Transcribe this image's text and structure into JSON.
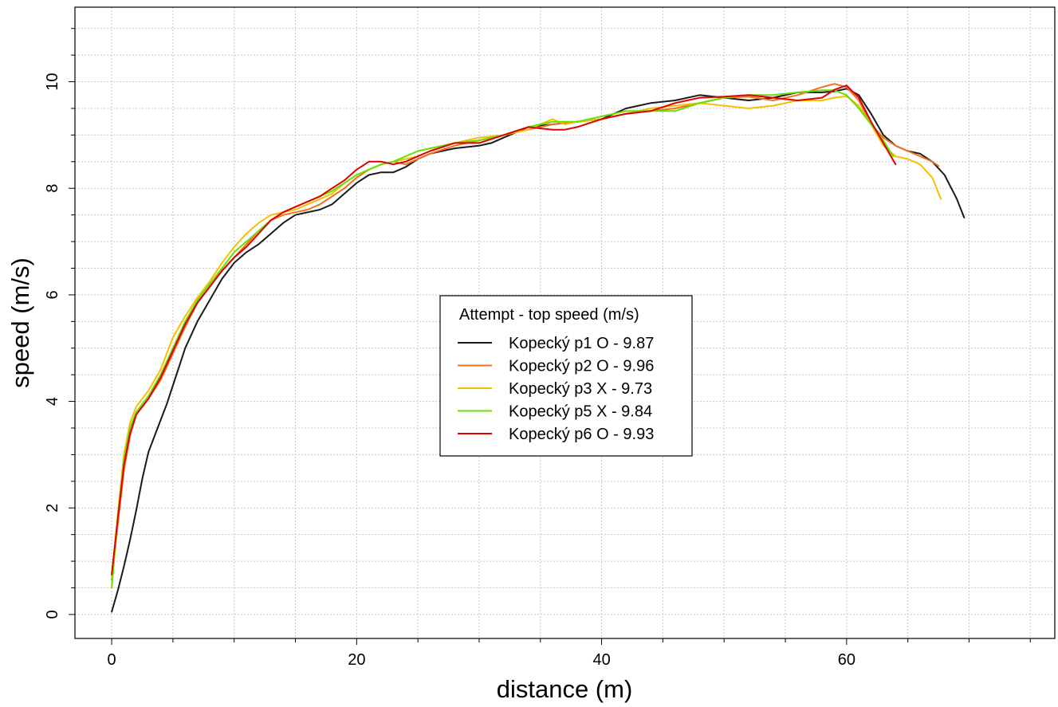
{
  "chart_data": {
    "type": "line",
    "xlabel": "distance (m)",
    "ylabel": "speed (m/s)",
    "xlim": [
      -3,
      77
    ],
    "ylim": [
      -0.45,
      11.4
    ],
    "xticks": [
      0,
      20,
      40,
      60
    ],
    "yticks": [
      0,
      2,
      4,
      6,
      8,
      10
    ],
    "grid": true,
    "legend": {
      "title": "Attempt - top speed (m/s)",
      "placement": "center"
    },
    "series": [
      {
        "name": "Kopecký p1 O - 9.87",
        "color": "#1a1a1a",
        "points": [
          [
            0,
            0.05
          ],
          [
            0.5,
            0.45
          ],
          [
            1,
            0.9
          ],
          [
            1.5,
            1.4
          ],
          [
            2,
            1.95
          ],
          [
            2.5,
            2.55
          ],
          [
            3,
            3.05
          ],
          [
            4,
            3.65
          ],
          [
            4.5,
            3.95
          ],
          [
            5,
            4.3
          ],
          [
            6,
            5.0
          ],
          [
            7,
            5.5
          ],
          [
            8,
            5.9
          ],
          [
            9,
            6.3
          ],
          [
            10,
            6.6
          ],
          [
            11,
            6.8
          ],
          [
            12,
            6.95
          ],
          [
            13,
            7.15
          ],
          [
            14,
            7.35
          ],
          [
            15,
            7.5
          ],
          [
            16,
            7.55
          ],
          [
            17,
            7.6
          ],
          [
            18,
            7.7
          ],
          [
            19,
            7.9
          ],
          [
            20,
            8.1
          ],
          [
            21,
            8.25
          ],
          [
            22,
            8.3
          ],
          [
            23,
            8.3
          ],
          [
            24,
            8.4
          ],
          [
            25,
            8.55
          ],
          [
            26,
            8.65
          ],
          [
            28,
            8.75
          ],
          [
            30,
            8.8
          ],
          [
            31,
            8.85
          ],
          [
            32,
            8.95
          ],
          [
            34,
            9.15
          ],
          [
            36,
            9.2
          ],
          [
            38,
            9.25
          ],
          [
            40,
            9.3
          ],
          [
            42,
            9.5
          ],
          [
            44,
            9.6
          ],
          [
            46,
            9.65
          ],
          [
            48,
            9.75
          ],
          [
            50,
            9.7
          ],
          [
            52,
            9.65
          ],
          [
            54,
            9.7
          ],
          [
            56,
            9.8
          ],
          [
            58,
            9.8
          ],
          [
            59,
            9.82
          ],
          [
            60,
            9.87
          ],
          [
            61,
            9.75
          ],
          [
            62,
            9.4
          ],
          [
            63,
            9.0
          ],
          [
            64,
            8.8
          ],
          [
            65,
            8.7
          ],
          [
            66,
            8.65
          ],
          [
            67,
            8.5
          ],
          [
            68,
            8.25
          ],
          [
            69,
            7.8
          ],
          [
            69.6,
            7.45
          ]
        ]
      },
      {
        "name": "Kopecký p2 O - 9.96",
        "color": "#f07020",
        "points": [
          [
            0,
            0.65
          ],
          [
            0.5,
            1.7
          ],
          [
            1,
            2.7
          ],
          [
            1.5,
            3.35
          ],
          [
            2,
            3.75
          ],
          [
            2.5,
            3.9
          ],
          [
            3,
            4.05
          ],
          [
            4,
            4.4
          ],
          [
            5,
            4.9
          ],
          [
            6,
            5.4
          ],
          [
            7,
            5.85
          ],
          [
            8,
            6.15
          ],
          [
            9,
            6.45
          ],
          [
            10,
            6.7
          ],
          [
            11,
            6.95
          ],
          [
            12,
            7.2
          ],
          [
            13,
            7.4
          ],
          [
            14,
            7.5
          ],
          [
            15,
            7.55
          ],
          [
            16,
            7.6
          ],
          [
            17,
            7.7
          ],
          [
            18,
            7.85
          ],
          [
            19,
            8.0
          ],
          [
            20,
            8.2
          ],
          [
            21,
            8.35
          ],
          [
            22,
            8.45
          ],
          [
            23,
            8.5
          ],
          [
            24,
            8.45
          ],
          [
            25,
            8.55
          ],
          [
            26,
            8.65
          ],
          [
            28,
            8.8
          ],
          [
            30,
            8.9
          ],
          [
            32,
            9.0
          ],
          [
            34,
            9.1
          ],
          [
            36,
            9.2
          ],
          [
            38,
            9.25
          ],
          [
            40,
            9.3
          ],
          [
            42,
            9.4
          ],
          [
            44,
            9.45
          ],
          [
            46,
            9.5
          ],
          [
            48,
            9.6
          ],
          [
            50,
            9.7
          ],
          [
            52,
            9.72
          ],
          [
            54,
            9.65
          ],
          [
            56,
            9.75
          ],
          [
            58,
            9.9
          ],
          [
            59,
            9.96
          ],
          [
            60,
            9.9
          ],
          [
            61,
            9.65
          ],
          [
            62,
            9.2
          ],
          [
            63,
            8.95
          ],
          [
            64,
            8.8
          ],
          [
            65,
            8.7
          ],
          [
            66,
            8.6
          ],
          [
            67,
            8.5
          ],
          [
            67.5,
            8.42
          ]
        ]
      },
      {
        "name": "Kopecký p3 X - 9.73",
        "color": "#f5c000",
        "points": [
          [
            0,
            0.7
          ],
          [
            0.5,
            1.9
          ],
          [
            1,
            3.0
          ],
          [
            1.5,
            3.6
          ],
          [
            2,
            3.9
          ],
          [
            2.5,
            4.05
          ],
          [
            3,
            4.2
          ],
          [
            4,
            4.6
          ],
          [
            5,
            5.2
          ],
          [
            6,
            5.6
          ],
          [
            7,
            5.95
          ],
          [
            8,
            6.25
          ],
          [
            9,
            6.6
          ],
          [
            10,
            6.9
          ],
          [
            11,
            7.15
          ],
          [
            12,
            7.35
          ],
          [
            13,
            7.5
          ],
          [
            14,
            7.55
          ],
          [
            15,
            7.6
          ],
          [
            16,
            7.7
          ],
          [
            17,
            7.8
          ],
          [
            18,
            7.9
          ],
          [
            19,
            8.1
          ],
          [
            20,
            8.25
          ],
          [
            21,
            8.35
          ],
          [
            22,
            8.45
          ],
          [
            23,
            8.5
          ],
          [
            24,
            8.55
          ],
          [
            25,
            8.6
          ],
          [
            26,
            8.7
          ],
          [
            28,
            8.85
          ],
          [
            30,
            8.95
          ],
          [
            32,
            9.0
          ],
          [
            34,
            9.1
          ],
          [
            35,
            9.2
          ],
          [
            36,
            9.3
          ],
          [
            37,
            9.2
          ],
          [
            38,
            9.25
          ],
          [
            40,
            9.3
          ],
          [
            42,
            9.4
          ],
          [
            44,
            9.5
          ],
          [
            46,
            9.55
          ],
          [
            48,
            9.6
          ],
          [
            50,
            9.55
          ],
          [
            52,
            9.5
          ],
          [
            54,
            9.55
          ],
          [
            56,
            9.65
          ],
          [
            58,
            9.65
          ],
          [
            59,
            9.7
          ],
          [
            60,
            9.73
          ],
          [
            61,
            9.55
          ],
          [
            62,
            9.2
          ],
          [
            63,
            8.8
          ],
          [
            64,
            8.6
          ],
          [
            65,
            8.55
          ],
          [
            66,
            8.45
          ],
          [
            67,
            8.2
          ],
          [
            67.7,
            7.8
          ]
        ]
      },
      {
        "name": "Kopecký p5 X - 9.84",
        "color": "#66e000",
        "points": [
          [
            0,
            0.5
          ],
          [
            0.5,
            1.8
          ],
          [
            1,
            2.9
          ],
          [
            1.5,
            3.5
          ],
          [
            2,
            3.8
          ],
          [
            2.5,
            3.95
          ],
          [
            3,
            4.1
          ],
          [
            4,
            4.5
          ],
          [
            5,
            5.0
          ],
          [
            6,
            5.5
          ],
          [
            7,
            5.9
          ],
          [
            8,
            6.2
          ],
          [
            9,
            6.5
          ],
          [
            10,
            6.8
          ],
          [
            11,
            7.0
          ],
          [
            12,
            7.2
          ],
          [
            13,
            7.4
          ],
          [
            14,
            7.55
          ],
          [
            15,
            7.65
          ],
          [
            16,
            7.75
          ],
          [
            17,
            7.85
          ],
          [
            18,
            7.95
          ],
          [
            19,
            8.1
          ],
          [
            20,
            8.25
          ],
          [
            21,
            8.35
          ],
          [
            22,
            8.45
          ],
          [
            23,
            8.5
          ],
          [
            24,
            8.6
          ],
          [
            25,
            8.7
          ],
          [
            26,
            8.75
          ],
          [
            27,
            8.8
          ],
          [
            28,
            8.85
          ],
          [
            30,
            8.9
          ],
          [
            32,
            9.0
          ],
          [
            34,
            9.15
          ],
          [
            36,
            9.25
          ],
          [
            38,
            9.25
          ],
          [
            40,
            9.35
          ],
          [
            42,
            9.45
          ],
          [
            44,
            9.45
          ],
          [
            46,
            9.45
          ],
          [
            48,
            9.6
          ],
          [
            50,
            9.7
          ],
          [
            52,
            9.75
          ],
          [
            54,
            9.75
          ],
          [
            56,
            9.8
          ],
          [
            58,
            9.84
          ],
          [
            59,
            9.84
          ],
          [
            60,
            9.75
          ],
          [
            61,
            9.5
          ],
          [
            62,
            9.2
          ],
          [
            63,
            8.9
          ],
          [
            63.8,
            8.6
          ]
        ]
      },
      {
        "name": "Kopecký p6 O - 9.93",
        "color": "#e00000",
        "points": [
          [
            0,
            0.75
          ],
          [
            0.5,
            1.8
          ],
          [
            1,
            2.8
          ],
          [
            1.5,
            3.4
          ],
          [
            2,
            3.75
          ],
          [
            2.5,
            3.9
          ],
          [
            3,
            4.05
          ],
          [
            4,
            4.45
          ],
          [
            5,
            4.95
          ],
          [
            6,
            5.45
          ],
          [
            7,
            5.85
          ],
          [
            8,
            6.15
          ],
          [
            9,
            6.45
          ],
          [
            10,
            6.7
          ],
          [
            11,
            6.9
          ],
          [
            12,
            7.15
          ],
          [
            13,
            7.4
          ],
          [
            14,
            7.55
          ],
          [
            15,
            7.65
          ],
          [
            16,
            7.75
          ],
          [
            17,
            7.85
          ],
          [
            18,
            8.0
          ],
          [
            19,
            8.15
          ],
          [
            20,
            8.35
          ],
          [
            21,
            8.5
          ],
          [
            22,
            8.5
          ],
          [
            23,
            8.45
          ],
          [
            24,
            8.5
          ],
          [
            25,
            8.6
          ],
          [
            26,
            8.7
          ],
          [
            28,
            8.85
          ],
          [
            30,
            8.85
          ],
          [
            32,
            9.0
          ],
          [
            34,
            9.15
          ],
          [
            36,
            9.1
          ],
          [
            37,
            9.1
          ],
          [
            38,
            9.15
          ],
          [
            40,
            9.3
          ],
          [
            42,
            9.4
          ],
          [
            44,
            9.45
          ],
          [
            46,
            9.6
          ],
          [
            48,
            9.7
          ],
          [
            50,
            9.72
          ],
          [
            52,
            9.75
          ],
          [
            54,
            9.7
          ],
          [
            56,
            9.65
          ],
          [
            58,
            9.7
          ],
          [
            59,
            9.85
          ],
          [
            60,
            9.93
          ],
          [
            61,
            9.7
          ],
          [
            62,
            9.25
          ],
          [
            63,
            8.85
          ],
          [
            64,
            8.45
          ]
        ]
      }
    ]
  }
}
